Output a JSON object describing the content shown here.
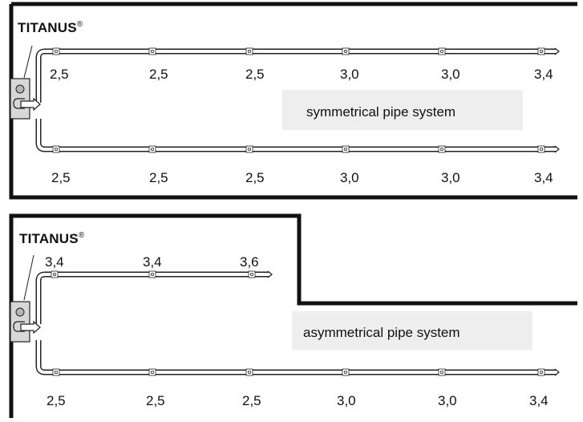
{
  "colors": {
    "frame": "#111111",
    "pipe_fill": "#ffffff",
    "pipe_stroke": "#222222",
    "device_fill": "#d7d7d7",
    "label_bg": "#eeeeee",
    "text": "#111111"
  },
  "brand": {
    "name": "TITANUS",
    "mark": "®"
  },
  "symmetrical": {
    "label": "symmetrical pipe system",
    "top_values": [
      "2,5",
      "2,5",
      "2,5",
      "3,0",
      "3,0",
      "3,4"
    ],
    "bottom_values": [
      "2,5",
      "2,5",
      "2,5",
      "3,0",
      "3,0",
      "3,4"
    ]
  },
  "asymmetrical": {
    "label": "asymmetrical pipe system",
    "top_values": [
      "3,4",
      "3,4",
      "3,6"
    ],
    "bottom_values": [
      "2,5",
      "2,5",
      "2,5",
      "3,0",
      "3,0",
      "3,4"
    ]
  }
}
